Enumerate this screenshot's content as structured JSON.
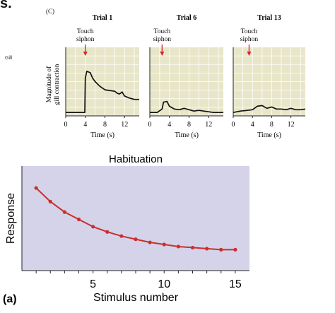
{
  "header": {
    "fragment": "s.",
    "side_label": "Gill",
    "panel_label": "(C)"
  },
  "panel_c": {
    "ylabel": "Magnitude of gill contraction",
    "xlabel": "Time (s)",
    "arrow_label_1": "Touch",
    "arrow_label_2": "siphon",
    "colors": {
      "plot_bg": "#e8e6c8",
      "grid": "#ffffff",
      "trace": "#111111",
      "arrow": "#d8202c"
    }
  },
  "panel_a": {
    "figure_label": "(a)",
    "colors": {
      "plot_bg": "#d4d3ea",
      "line": "#c9302c",
      "marker": "#c9302c"
    }
  },
  "chart_data": [
    {
      "type": "line",
      "title": "Trial 1",
      "xlabel": "Time (s)",
      "ylabel": "Magnitude of gill contraction",
      "xlim": [
        0,
        15
      ],
      "xticks": [
        0,
        4,
        8,
        12
      ],
      "stimulus_time": 4,
      "x": [
        0,
        3.9,
        4.0,
        4.3,
        5,
        5.5,
        6,
        7,
        8,
        9,
        10,
        10.5,
        11,
        11.5,
        12,
        13,
        14,
        15
      ],
      "y": [
        0.05,
        0.05,
        0.55,
        0.65,
        0.63,
        0.55,
        0.5,
        0.43,
        0.38,
        0.37,
        0.36,
        0.33,
        0.32,
        0.35,
        0.29,
        0.26,
        0.24,
        0.24
      ]
    },
    {
      "type": "line",
      "title": "Trial 6",
      "xlabel": "Time (s)",
      "xlim": [
        0,
        15
      ],
      "xticks": [
        0,
        4,
        8,
        12
      ],
      "stimulus_time": 2.5,
      "x": [
        0,
        1.5,
        2.5,
        2.8,
        3.5,
        4,
        5,
        6,
        7,
        8,
        9,
        10,
        11,
        12,
        13,
        15
      ],
      "y": [
        0.05,
        0.05,
        0.1,
        0.2,
        0.21,
        0.14,
        0.1,
        0.09,
        0.11,
        0.09,
        0.07,
        0.08,
        0.07,
        0.06,
        0.05,
        0.05
      ]
    },
    {
      "type": "line",
      "title": "Trial 13",
      "xlabel": "Time (s)",
      "xlim": [
        0,
        15
      ],
      "xticks": [
        0,
        4,
        8,
        12
      ],
      "stimulus_time": 3.3,
      "x": [
        0,
        1.5,
        3,
        4,
        5,
        6,
        7,
        8,
        9,
        10,
        11,
        12,
        13,
        14,
        15
      ],
      "y": [
        0.05,
        0.07,
        0.08,
        0.09,
        0.14,
        0.15,
        0.11,
        0.13,
        0.1,
        0.1,
        0.09,
        0.11,
        0.09,
        0.09,
        0.1
      ]
    },
    {
      "type": "line",
      "title": "Habituation",
      "xlabel": "Stimulus number",
      "ylabel": "Response",
      "xlim": [
        0,
        16
      ],
      "ylim": [
        0,
        1
      ],
      "xticks": [
        5,
        10,
        15
      ],
      "x": [
        1,
        2,
        3,
        4,
        5,
        6,
        7,
        8,
        9,
        10,
        11,
        12,
        13,
        14,
        15
      ],
      "y": [
        0.79,
        0.66,
        0.56,
        0.49,
        0.42,
        0.37,
        0.33,
        0.3,
        0.27,
        0.25,
        0.23,
        0.22,
        0.21,
        0.2,
        0.2
      ]
    }
  ]
}
